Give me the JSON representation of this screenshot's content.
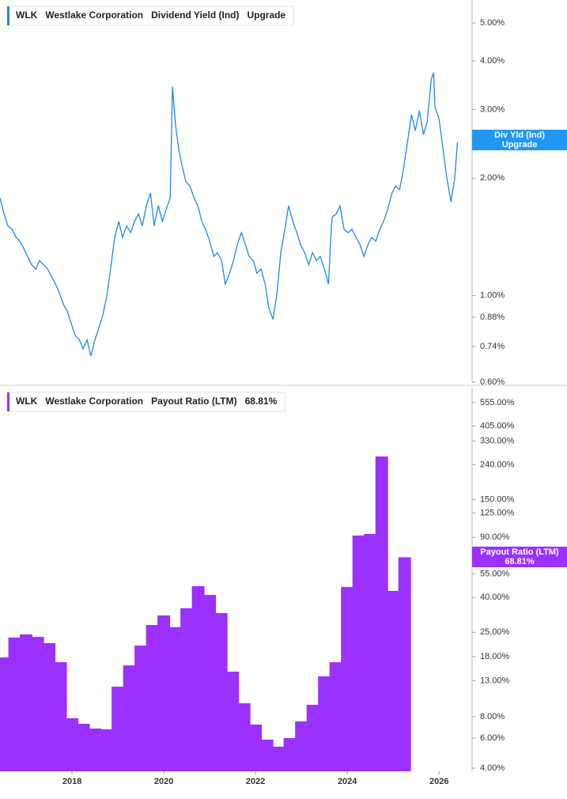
{
  "chart_data": [
    {
      "type": "line",
      "ticker": "WLK",
      "company": "Westlake Corporation",
      "header_value": "Upgrade",
      "tag_label": "Div Yld (Ind)",
      "log_scale": true,
      "ylim": [
        0.6,
        5.73
      ],
      "xlim": [
        2016.43,
        2026.72
      ],
      "yticks": [
        {
          "value": 5,
          "label": "5.00%"
        },
        {
          "value": 4,
          "label": "4.00%"
        },
        {
          "value": 3,
          "label": "3.00%"
        },
        {
          "value": 2,
          "label": "2.00%"
        },
        {
          "value": 1,
          "label": "1.00%"
        },
        {
          "value": 0.88,
          "label": "0.88%"
        },
        {
          "value": 0.74,
          "label": "0.74%"
        },
        {
          "value": 0.6,
          "label": "0.60%"
        }
      ],
      "series": [
        {
          "name": "Dividend Yield (Ind)",
          "color": "#1e88e5",
          "x": [
            2016.43,
            2016.52,
            2016.6,
            2016.69,
            2016.78,
            2016.86,
            2016.95,
            2017.03,
            2017.12,
            2017.21,
            2017.29,
            2017.38,
            2017.47,
            2017.55,
            2017.64,
            2017.72,
            2017.81,
            2017.9,
            2017.98,
            2018.07,
            2018.16,
            2018.24,
            2018.33,
            2018.41,
            2018.5,
            2018.59,
            2018.67,
            2018.76,
            2018.84,
            2018.93,
            2019.02,
            2019.1,
            2019.19,
            2019.28,
            2019.36,
            2019.45,
            2019.53,
            2019.62,
            2019.71,
            2019.79,
            2019.88,
            2019.97,
            2020.05,
            2020.14,
            2020.19,
            2020.26,
            2020.33,
            2020.4,
            2020.48,
            2020.57,
            2020.66,
            2020.74,
            2020.83,
            2020.91,
            2021.0,
            2021.09,
            2021.17,
            2021.26,
            2021.34,
            2021.43,
            2021.52,
            2021.6,
            2021.69,
            2021.78,
            2021.86,
            2021.95,
            2022.03,
            2022.12,
            2022.21,
            2022.29,
            2022.38,
            2022.47,
            2022.55,
            2022.64,
            2022.72,
            2022.81,
            2022.9,
            2022.98,
            2023.07,
            2023.16,
            2023.24,
            2023.33,
            2023.41,
            2023.5,
            2023.59,
            2023.64,
            2023.67,
            2023.76,
            2023.84,
            2023.93,
            2024.02,
            2024.1,
            2024.19,
            2024.28,
            2024.36,
            2024.45,
            2024.53,
            2024.62,
            2024.71,
            2024.79,
            2024.88,
            2024.97,
            2025.05,
            2025.14,
            2025.22,
            2025.31,
            2025.4,
            2025.48,
            2025.57,
            2025.66,
            2025.74,
            2025.83,
            2025.88,
            2025.91,
            2026.0,
            2026.09,
            2026.17,
            2026.26,
            2026.34,
            2026.4
          ],
          "values": [
            1.78,
            1.62,
            1.51,
            1.48,
            1.41,
            1.38,
            1.32,
            1.26,
            1.2,
            1.17,
            1.23,
            1.2,
            1.17,
            1.12,
            1.07,
            1.02,
            0.95,
            0.91,
            0.85,
            0.79,
            0.77,
            0.73,
            0.77,
            0.7,
            0.77,
            0.83,
            0.89,
            1.0,
            1.17,
            1.41,
            1.55,
            1.41,
            1.51,
            1.45,
            1.55,
            1.62,
            1.51,
            1.7,
            1.83,
            1.51,
            1.7,
            1.55,
            1.66,
            1.78,
            3.43,
            2.71,
            2.36,
            2.15,
            1.96,
            1.91,
            1.78,
            1.7,
            1.55,
            1.48,
            1.38,
            1.26,
            1.29,
            1.23,
            1.07,
            1.14,
            1.23,
            1.35,
            1.45,
            1.35,
            1.26,
            1.23,
            1.14,
            1.17,
            1.07,
            0.93,
            0.87,
            1.02,
            1.29,
            1.48,
            1.7,
            1.55,
            1.45,
            1.35,
            1.29,
            1.2,
            1.29,
            1.23,
            1.26,
            1.17,
            1.07,
            1.41,
            1.59,
            1.62,
            1.7,
            1.48,
            1.45,
            1.48,
            1.41,
            1.35,
            1.26,
            1.35,
            1.41,
            1.38,
            1.48,
            1.55,
            1.66,
            1.83,
            1.91,
            1.87,
            2.1,
            2.47,
            2.91,
            2.65,
            2.98,
            2.59,
            2.78,
            3.59,
            3.73,
            3.05,
            2.84,
            2.36,
            2.0,
            1.74,
            2.0,
            2.47
          ]
        }
      ]
    },
    {
      "type": "bar",
      "ticker": "WLK",
      "company": "Westlake Corporation",
      "log_scale": true,
      "ylim": [
        3.83,
        679
      ],
      "xlim": [
        2016.43,
        2026.72
      ],
      "xticks": [
        2018,
        2020,
        2022,
        2024,
        2026
      ],
      "yticks": [
        {
          "value": 555,
          "label": "555.00%"
        },
        {
          "value": 405,
          "label": "405.00%"
        },
        {
          "value": 330,
          "label": "330.00%"
        },
        {
          "value": 240,
          "label": "240.00%"
        },
        {
          "value": 150,
          "label": "150.00%"
        },
        {
          "value": 125,
          "label": "125.00%"
        },
        {
          "value": 90,
          "label": "90.00%"
        },
        {
          "value": 55,
          "label": "55.00%"
        },
        {
          "value": 40,
          "label": "40.00%"
        },
        {
          "value": 25,
          "label": "25.00%"
        },
        {
          "value": 18,
          "label": "18.00%"
        },
        {
          "value": 13,
          "label": "13.00%"
        },
        {
          "value": 8,
          "label": "8.00%"
        },
        {
          "value": 6,
          "label": "6.00%"
        },
        {
          "value": 4,
          "label": "4.00%"
        }
      ],
      "series": [
        {
          "name": "Payout Ratio (LTM)",
          "color": "#9b30ff",
          "x": [
            2016.5,
            2016.75,
            2017,
            2017.25,
            2017.5,
            2017.75,
            2018,
            2018.25,
            2018.5,
            2018.75,
            2019,
            2019.25,
            2019.5,
            2019.75,
            2020,
            2020.25,
            2020.5,
            2020.75,
            2021,
            2021.25,
            2021.5,
            2021.75,
            2022,
            2022.25,
            2022.5,
            2022.75,
            2023,
            2023.25,
            2023.5,
            2023.75,
            2024,
            2024.25,
            2024.5,
            2024.75,
            2025,
            2025.25
          ],
          "values": [
            17.8,
            23.3,
            24.3,
            23.5,
            21.6,
            16.7,
            7.84,
            7.27,
            6.82,
            6.75,
            12.0,
            16.0,
            20.9,
            27.6,
            31.4,
            26.8,
            34.6,
            46.6,
            41.4,
            32.4,
            14.7,
            9.6,
            7.2,
            5.87,
            5.34,
            6.0,
            7.51,
            9.4,
            13.8,
            16.7,
            46.1,
            92.3,
            94.3,
            268,
            43.7,
            68.81
          ],
          "value_labels": [
            null,
            null,
            null,
            null,
            null,
            null,
            null,
            null,
            null,
            null,
            null,
            null,
            null,
            null,
            null,
            null,
            null,
            null,
            null,
            null,
            null,
            null,
            null,
            null,
            null,
            null,
            null,
            null,
            null,
            null,
            null,
            null,
            null,
            null,
            null,
            "68.81%"
          ]
        }
      ]
    }
  ]
}
